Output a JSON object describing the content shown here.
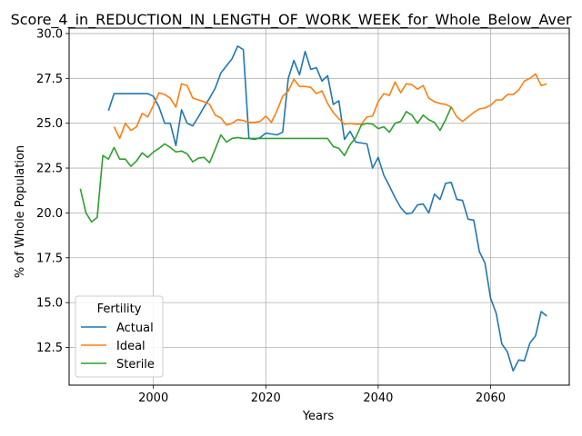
{
  "chart_data": {
    "type": "line",
    "title": "Score_4_in_REDUCTION_IN_LENGTH_OF_WORK_WEEK_for_Whole_Below_Aver",
    "xlabel": "Years",
    "ylabel": "% of Whole Population",
    "xlim": [
      1985,
      2074
    ],
    "ylim": [
      10.4,
      30.3
    ],
    "xticks": [
      2000,
      2020,
      2040,
      2060
    ],
    "yticks": [
      12.5,
      15.0,
      17.5,
      20.0,
      22.5,
      25.0,
      27.5,
      30.0
    ],
    "ytick_labels": [
      "12.5",
      "15.0",
      "17.5",
      "20.0",
      "22.5",
      "25.0",
      "27.5",
      "30.0"
    ],
    "grid": true,
    "legend": {
      "title": "Fertility",
      "position": "lower-left"
    },
    "series": [
      {
        "name": "Actual",
        "color": "#1f77b4",
        "x": [
          1992,
          1993,
          1994,
          1995,
          1996,
          1997,
          1998,
          1999,
          2000,
          2001,
          2002,
          2003,
          2004,
          2005,
          2006,
          2007,
          2008,
          2009,
          2010,
          2011,
          2012,
          2013,
          2014,
          2015,
          2016,
          2017,
          2018,
          2019,
          2020,
          2021,
          2022,
          2023,
          2024,
          2025,
          2026,
          2027,
          2028,
          2029,
          2030,
          2031,
          2032,
          2033,
          2034,
          2035,
          2036,
          2037,
          2038,
          2039,
          2040,
          2041,
          2042,
          2043,
          2044,
          2045,
          2046,
          2047,
          2048,
          2049,
          2050,
          2051,
          2052,
          2053,
          2054,
          2055,
          2056,
          2057,
          2058,
          2059,
          2060,
          2061,
          2062,
          2063,
          2064,
          2065,
          2066,
          2067,
          2068,
          2069,
          2070
        ],
        "values": [
          25.7,
          26.65,
          26.65,
          26.65,
          26.65,
          26.65,
          26.65,
          26.65,
          26.5,
          25.9,
          25.0,
          25.0,
          23.75,
          25.75,
          25.0,
          24.85,
          25.35,
          25.9,
          26.4,
          26.95,
          27.8,
          28.2,
          28.6,
          29.3,
          29.1,
          24.15,
          24.1,
          24.2,
          24.45,
          24.4,
          24.35,
          24.5,
          27.5,
          28.5,
          27.7,
          29.0,
          28.0,
          28.1,
          27.35,
          27.65,
          26.05,
          26.25,
          24.1,
          24.55,
          23.95,
          23.9,
          23.85,
          22.5,
          23.1,
          22.1,
          21.5,
          20.85,
          20.3,
          19.95,
          20.0,
          20.45,
          20.5,
          20.0,
          21.05,
          20.75,
          21.65,
          21.7,
          20.75,
          20.7,
          19.65,
          19.6,
          17.85,
          17.2,
          15.25,
          14.4,
          12.7,
          12.25,
          11.2,
          11.8,
          11.75,
          12.75,
          13.15,
          14.5,
          14.25
        ]
      },
      {
        "name": "Ideal",
        "color": "#ff7f0e",
        "x": [
          1993,
          1994,
          1995,
          1996,
          1997,
          1998,
          1999,
          2000,
          2001,
          2002,
          2003,
          2004,
          2005,
          2006,
          2007,
          2008,
          2009,
          2010,
          2011,
          2012,
          2013,
          2014,
          2015,
          2016,
          2017,
          2018,
          2019,
          2020,
          2021,
          2022,
          2023,
          2024,
          2025,
          2026,
          2027,
          2028,
          2029,
          2030,
          2031,
          2032,
          2033,
          2034,
          2035,
          2036,
          2037,
          2038,
          2039,
          2040,
          2041,
          2042,
          2043,
          2044,
          2045,
          2046,
          2047,
          2048,
          2049,
          2050,
          2051,
          2052,
          2053,
          2054,
          2055,
          2056,
          2057,
          2058,
          2059,
          2060,
          2061,
          2062,
          2063,
          2064,
          2065,
          2066,
          2067,
          2068,
          2069,
          2070
        ],
        "values": [
          24.8,
          24.15,
          25.0,
          24.6,
          24.8,
          25.55,
          25.35,
          26.0,
          26.7,
          26.6,
          26.4,
          25.9,
          27.2,
          27.1,
          26.4,
          26.3,
          26.2,
          26.05,
          25.45,
          25.3,
          24.9,
          25.0,
          25.2,
          25.15,
          25.05,
          25.05,
          25.1,
          25.4,
          25.05,
          25.7,
          26.5,
          26.8,
          27.45,
          27.05,
          27.05,
          27.0,
          26.65,
          26.8,
          26.1,
          25.6,
          25.25,
          24.95,
          25.0,
          24.95,
          24.95,
          25.35,
          25.4,
          26.2,
          26.65,
          26.55,
          27.3,
          26.7,
          27.2,
          27.15,
          26.9,
          27.1,
          26.4,
          26.2,
          26.1,
          26.05,
          25.9,
          25.35,
          25.1,
          25.35,
          25.6,
          25.8,
          25.85,
          26.0,
          26.3,
          26.3,
          26.6,
          26.6,
          26.85,
          27.35,
          27.5,
          27.75,
          27.1,
          27.2
        ]
      },
      {
        "name": "Sterile",
        "color": "#2ca02c",
        "x": [
          1987,
          1988,
          1989,
          1990,
          1991,
          1992,
          1993,
          1994,
          1995,
          1996,
          1997,
          1998,
          1999,
          2000,
          2001,
          2002,
          2003,
          2004,
          2005,
          2006,
          2007,
          2008,
          2009,
          2010,
          2011,
          2012,
          2013,
          2014,
          2015,
          2016,
          2017,
          2018,
          2019,
          2020,
          2021,
          2022,
          2023,
          2024,
          2025,
          2026,
          2027,
          2028,
          2029,
          2030,
          2031,
          2032,
          2033,
          2034,
          2035,
          2036,
          2037,
          2038,
          2039,
          2040,
          2041,
          2042,
          2043,
          2044,
          2045,
          2046,
          2047,
          2048,
          2049,
          2050,
          2051,
          2052,
          2053
        ],
        "values": [
          21.35,
          20.0,
          19.5,
          19.75,
          23.2,
          23.0,
          23.65,
          23.0,
          23.0,
          22.6,
          22.9,
          23.35,
          23.1,
          23.4,
          23.6,
          23.85,
          23.65,
          23.4,
          23.45,
          23.3,
          22.85,
          23.05,
          23.1,
          22.8,
          23.55,
          24.35,
          23.95,
          24.15,
          24.2,
          24.15,
          24.15,
          24.15,
          24.15,
          24.15,
          24.15,
          24.15,
          24.15,
          24.15,
          24.15,
          24.15,
          24.15,
          24.15,
          24.15,
          24.15,
          24.15,
          23.7,
          23.6,
          23.2,
          23.8,
          24.2,
          24.9,
          25.0,
          24.95,
          24.7,
          24.8,
          24.5,
          25.0,
          25.1,
          25.65,
          25.45,
          25.0,
          25.45,
          25.2,
          25.05,
          24.6,
          25.2,
          25.9
        ]
      }
    ]
  }
}
